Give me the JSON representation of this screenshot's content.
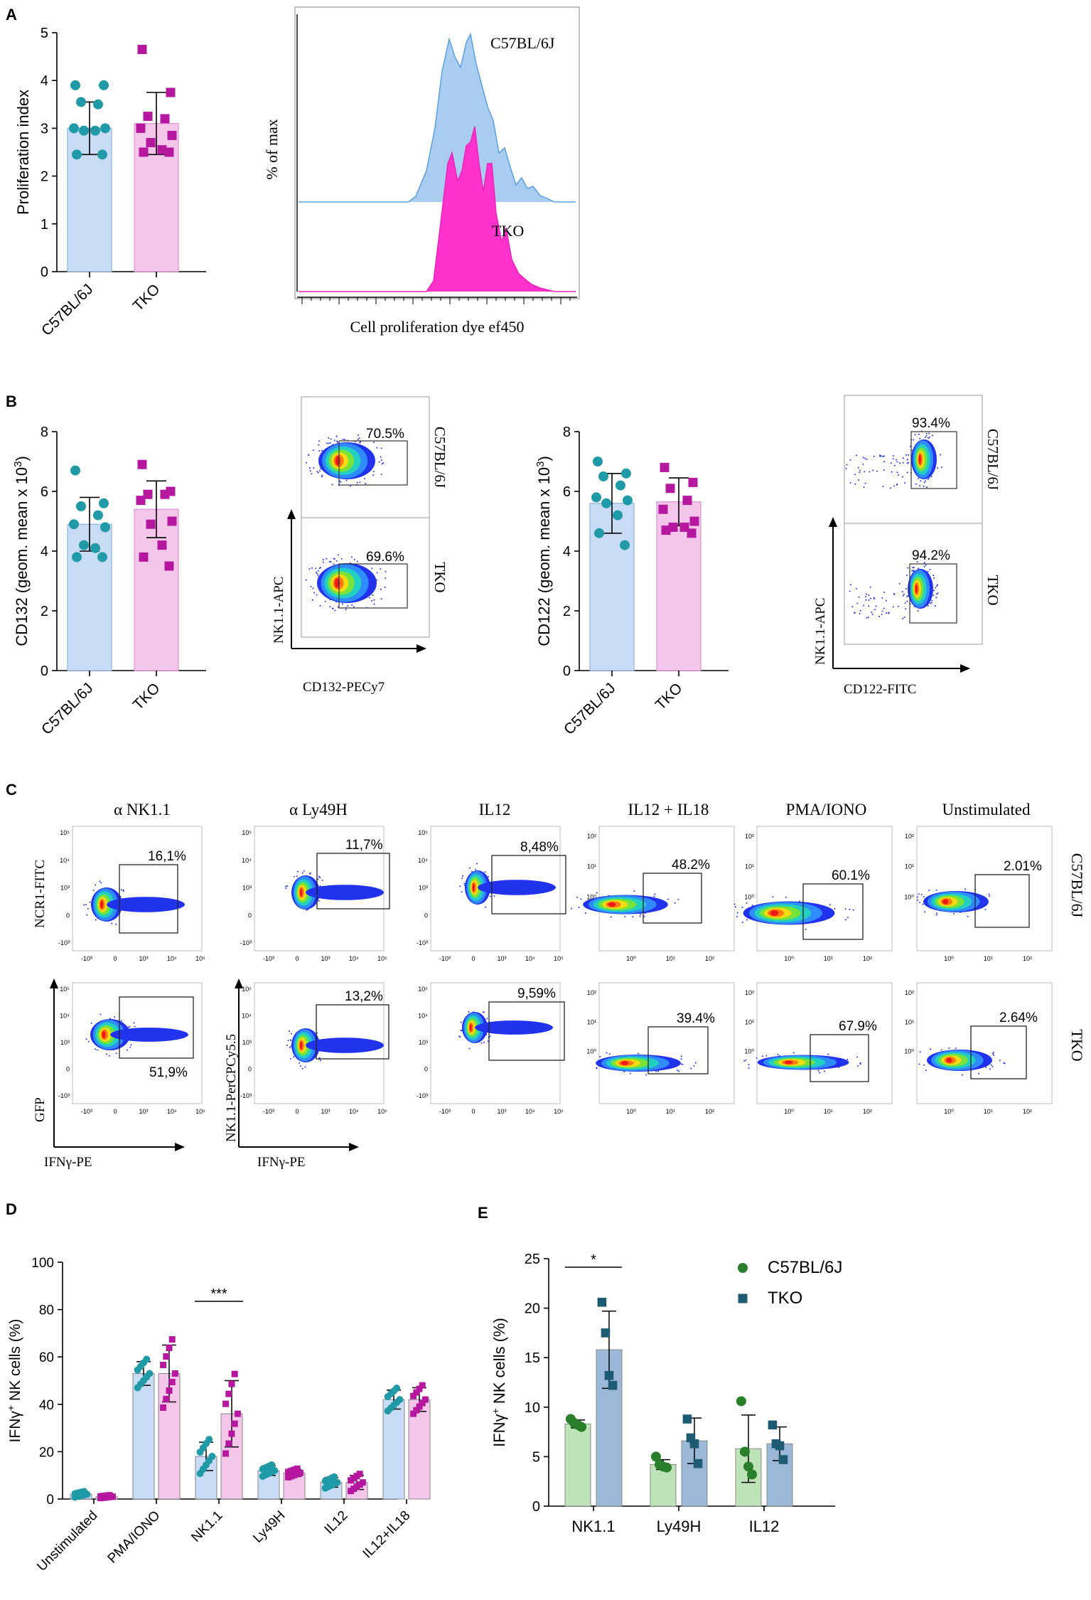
{
  "panels": {
    "A": "A",
    "B": "B",
    "C": "C",
    "D": "D",
    "E": "E"
  },
  "colors": {
    "wt": "#1f9aa6",
    "tko": "#b5179e",
    "wtBar": "#c9dcf5",
    "tkoBar": "#f4c6ea",
    "histWt": "#a9cdf0",
    "histTko": "#ff33cc",
    "eWt": "#2a7f2a",
    "eTko": "#1d5b73",
    "eWtBar": "#bfe3b8",
    "eTkoBar": "#9bb8d9"
  },
  "chart_data": [
    {
      "id": "A-bar",
      "type": "bar",
      "ylabel": "Proliferation index",
      "ylim": [
        0,
        5
      ],
      "yticks": [
        "0",
        "1",
        "2",
        "3",
        "4",
        "5"
      ],
      "categories": [
        "C57BL/6J",
        "TKO"
      ],
      "values": [
        3.0,
        3.1
      ],
      "sd": [
        0.55,
        0.65
      ],
      "points": [
        [
          3.9,
          3.9,
          3.55,
          3.5,
          3.0,
          3.0,
          2.95,
          2.95,
          2.45,
          2.45
        ],
        [
          4.65,
          3.75,
          3.25,
          3.2,
          3.0,
          2.85,
          2.7,
          2.55,
          2.5,
          2.5
        ]
      ]
    },
    {
      "id": "A-hist",
      "type": "area",
      "xlabel": "Cell proliferation dye ef450",
      "ylabel": "% of max",
      "series": [
        {
          "name": "C57BL/6J"
        },
        {
          "name": "TKO"
        }
      ]
    },
    {
      "id": "B-cd132",
      "type": "bar",
      "ylabel": "CD132 (geom. mean x 10",
      "ylabel_sup": "3",
      "ylabel_end": ")",
      "ylim": [
        0,
        8
      ],
      "yticks": [
        "0",
        "2",
        "4",
        "6",
        "8"
      ],
      "categories": [
        "C57BL/6J",
        "TKO"
      ],
      "values": [
        4.9,
        5.4
      ],
      "sd": [
        0.9,
        0.95
      ],
      "points": [
        [
          6.7,
          5.6,
          5.5,
          5.2,
          4.9,
          4.8,
          4.2,
          4.1,
          3.8,
          3.8
        ],
        [
          6.9,
          6.0,
          5.9,
          5.9,
          5.7,
          5.0,
          4.9,
          4.2,
          3.8,
          3.5
        ]
      ]
    },
    {
      "id": "B-flow132",
      "type": "scatter",
      "xlabel": "CD132-PECy7",
      "ylabel": "NK1.1-APC",
      "gates": [
        "70.5%",
        "69.6%"
      ],
      "rows": [
        "C57BL/6J",
        "TKO"
      ]
    },
    {
      "id": "B-cd122",
      "type": "bar",
      "ylabel": "CD122 (geom. mean x 10",
      "ylabel_sup": "3",
      "ylabel_end": ")",
      "ylim": [
        0,
        8
      ],
      "yticks": [
        "0",
        "2",
        "4",
        "6",
        "8"
      ],
      "categories": [
        "C57BL/6J",
        "TKO"
      ],
      "values": [
        5.6,
        5.65
      ],
      "sd": [
        1.0,
        0.8
      ],
      "points": [
        [
          7.0,
          6.6,
          6.5,
          6.2,
          5.8,
          5.7,
          5.6,
          5.2,
          4.6,
          4.2
        ],
        [
          6.8,
          6.3,
          6.1,
          5.7,
          5.4,
          5.0,
          4.8,
          4.8,
          4.7,
          4.6
        ]
      ]
    },
    {
      "id": "B-flow122",
      "type": "scatter",
      "xlabel": "CD122-FITC",
      "ylabel": "NK1.1-APC",
      "gates": [
        "93.4%",
        "94.2%"
      ],
      "rows": [
        "C57BL/6J",
        "TKO"
      ]
    },
    {
      "id": "C-flow",
      "type": "scatter",
      "columns": [
        "α NK1.1",
        "α Ly49H",
        "IL12",
        "IL12 + IL18",
        "PMA/IONO",
        "Unstimulated"
      ],
      "rows": [
        "C57BL/6J",
        "TKO"
      ],
      "gates": [
        [
          "16,1%",
          "11,7%",
          "8,48%",
          "48.2%",
          "60.1%",
          "2.01%"
        ],
        [
          "51,9%",
          "13,2%",
          "9,59%",
          "39.4%",
          "67.9%",
          "2.64%"
        ]
      ],
      "ylabels": {
        "col0_top": "NCR1-FITC",
        "col0_bottom": "GFP",
        "col1_bottom": "NK1.1-PerCPCy5.5"
      },
      "xlabels": [
        "IFNγ-PE",
        "IFNγ-PE"
      ],
      "ticks": {
        "y": [
          "10⁵",
          "10⁴",
          "10³",
          "0",
          "-10³"
        ],
        "x": [
          "-10³",
          "0",
          "10³",
          "10⁴",
          "10⁵"
        ],
        "y2": [
          "10²",
          "10¹",
          "10⁰"
        ],
        "x2": [
          "10⁰",
          "10¹",
          "10²"
        ]
      }
    },
    {
      "id": "D",
      "type": "bar",
      "ylabel": "IFNγ",
      "ylabel_sup": "+",
      "ylabel_end": "NK cells (%)",
      "ylim": [
        0,
        100
      ],
      "yticks": [
        "0",
        "20",
        "40",
        "60",
        "80",
        "100"
      ],
      "categories": [
        "Unstimulated",
        "PMA/IONO",
        "NK1.1",
        "Ly49H",
        "IL12",
        "IL12+IL18"
      ],
      "series": [
        {
          "name": "C57BL/6J",
          "values": [
            2,
            53,
            18,
            12,
            7,
            42
          ],
          "sd": [
            1,
            5,
            6,
            2,
            2,
            4
          ]
        },
        {
          "name": "TKO",
          "values": [
            1,
            53,
            36,
            11,
            7,
            42
          ],
          "sd": [
            0.5,
            12,
            14,
            1.5,
            3,
            5
          ]
        }
      ],
      "significance": [
        {
          "category": "NK1.1",
          "label": "***"
        }
      ]
    },
    {
      "id": "E",
      "type": "bar",
      "ylabel": "IFNγ",
      "ylabel_sup": "+",
      "ylabel_end": "NK cells (%)",
      "ylim": [
        0,
        25
      ],
      "yticks": [
        "0",
        "5",
        "10",
        "15",
        "20",
        "25"
      ],
      "categories": [
        "NK1.1",
        "Ly49H",
        "IL12"
      ],
      "series": [
        {
          "name": "C57BL/6J",
          "values": [
            8.3,
            4.2,
            5.8
          ],
          "sd": [
            0.4,
            0.5,
            3.4
          ],
          "points": [
            [
              8.8,
              8.4,
              8.2,
              8.0
            ],
            [
              5.0,
              4.2,
              4.0,
              3.9
            ],
            [
              10.6,
              5.5,
              4.0,
              3.2
            ]
          ]
        },
        {
          "name": "TKO",
          "values": [
            15.8,
            6.6,
            6.3
          ],
          "sd": [
            3.9,
            2.3,
            1.7
          ],
          "points": [
            [
              20.6,
              17.5,
              13.2,
              12.2
            ],
            [
              8.8,
              6.9,
              6.3,
              4.3
            ],
            [
              8.2,
              6.3,
              6.1,
              4.7
            ]
          ]
        }
      ],
      "legend": [
        "C57BL/6J",
        "TKO"
      ],
      "significance": [
        {
          "category": "NK1.1",
          "label": "*"
        }
      ]
    }
  ]
}
